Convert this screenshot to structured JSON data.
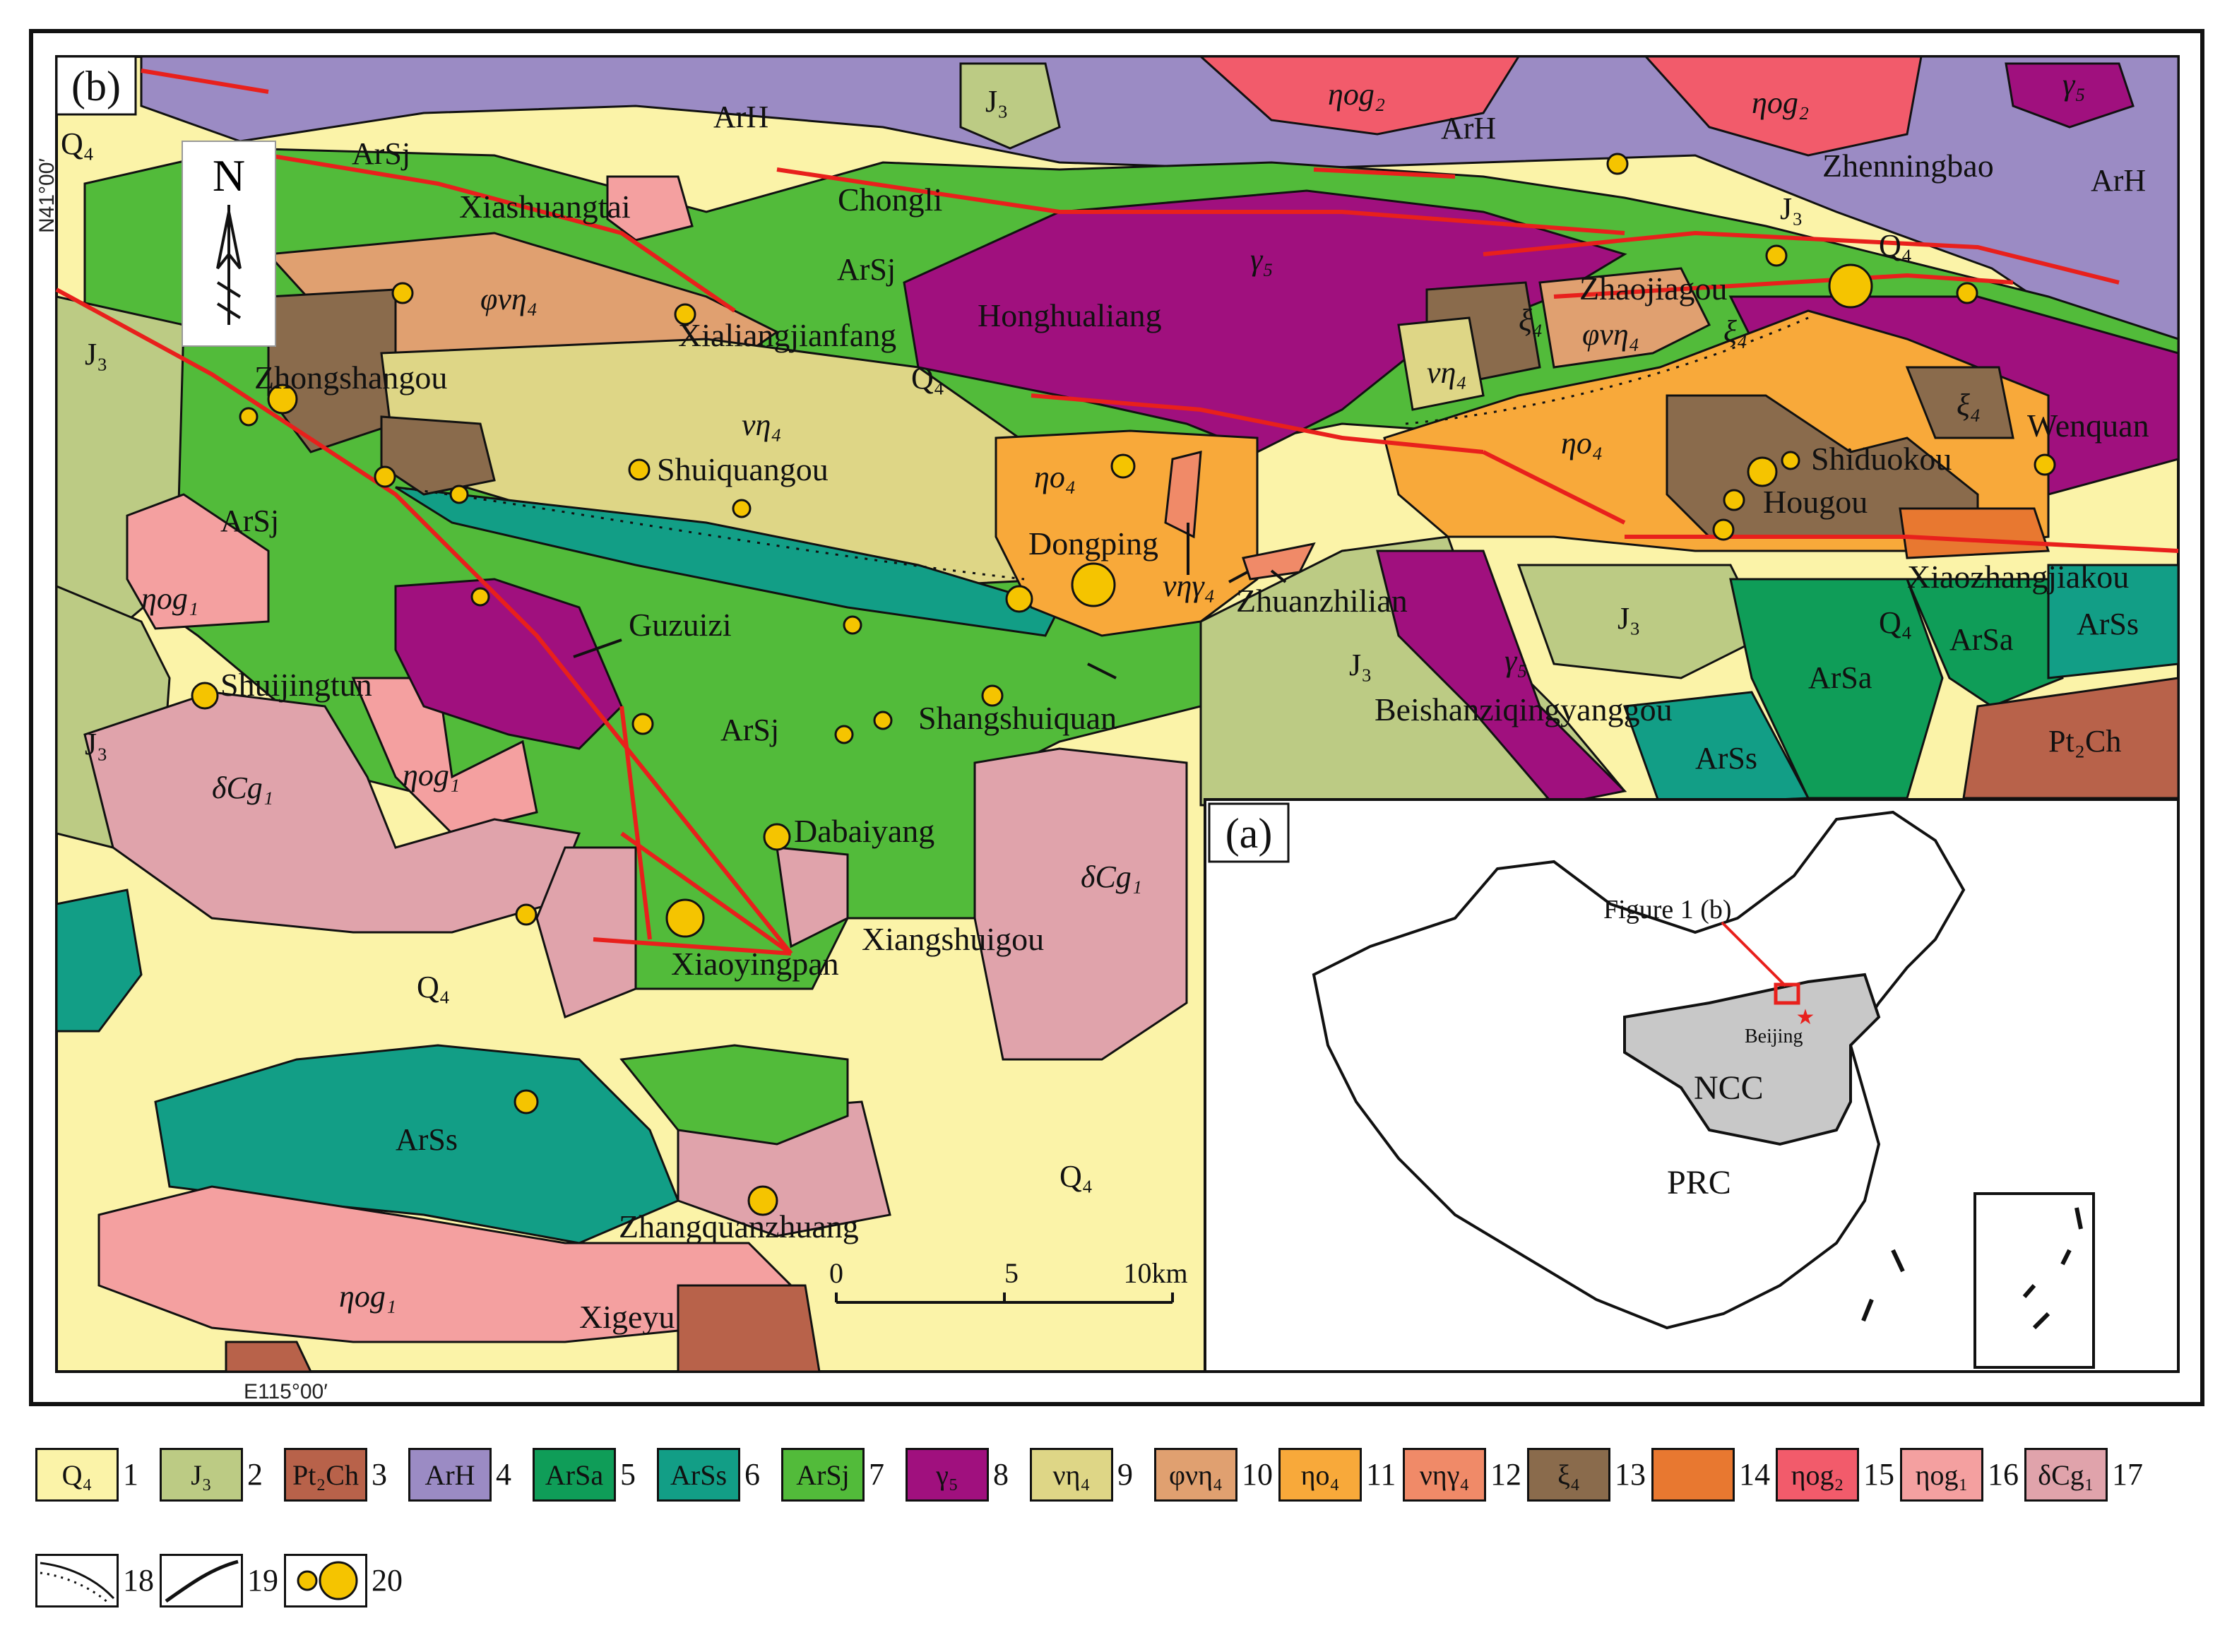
{
  "panels": {
    "main": "(b)",
    "inset": "(a)"
  },
  "coords": {
    "lat": "N41°00′",
    "lon": "E115°00′"
  },
  "north": "N",
  "scale": {
    "ticks": [
      "0",
      "5",
      "10km"
    ]
  },
  "places": {
    "xiashuangtai": "Xiashuangtai",
    "chongli": "Chongli",
    "zhenningbao": "Zhenningbao",
    "xialiangjianfang": "Xialiangjianfang",
    "honghualiang": "Honghualiang",
    "zhaojiagou": "Zhaojiagou",
    "zhongshangou": "Zhongshangou",
    "shuiquangou": "Shuiquangou",
    "wenquan": "Wenquan",
    "shiduokou": "Shiduokou",
    "hougou": "Hougou",
    "dongping": "Dongping",
    "zhuanzhilian": "Zhuanzhilian",
    "xiaozhangjiakou": "Xiaozhangjiakou",
    "guzuizi": "Guzuizi",
    "shuijingtun": "Shuijingtun",
    "shangshuiquan": "Shangshuiquan",
    "beishanziqingyanggou": "Beishanziqingyanggou",
    "dabaiyang": "Dabaiyang",
    "xiangshuigou": "Xiangshuigou",
    "xiaoyingpan": "Xiaoyingpan",
    "zhangquanzhuang": "Zhangquanzhuang",
    "xigeyu": "Xigeyu"
  },
  "units": {
    "Q4": "Q₄",
    "J3": "J₃",
    "Pt2Ch": "Pt₂Ch",
    "ArH": "ArH",
    "ArSa": "ArSa",
    "ArSs": "ArSs",
    "ArSj": "ArSj",
    "g5": "γ₅",
    "vn4": "νη₄",
    "fvn4": "φνη₄",
    "no4": "ηο₄",
    "vng4": "νηγ₄",
    "xi4": "ξ₄",
    "nog2": "ηog₂",
    "nog1": "ηog₁",
    "dCg1": "δCg₁"
  },
  "inset": {
    "figure_label": "Figure 1 (b)",
    "beijing": "Beijing",
    "ncc": "NCC",
    "prc": "PRC"
  },
  "colors": {
    "Q4": "#fbf3a8",
    "J3": "#bccb84",
    "Pt2Ch": "#b8624a",
    "ArH": "#9b8bc4",
    "ArSa": "#0f9d58",
    "ArSs": "#129e86",
    "ArSj": "#52bb3a",
    "g5": "#a0107e",
    "vn4": "#ded686",
    "fvn4": "#e0a070",
    "no4": "#f8a93a",
    "vng4": "#f08a68",
    "xi4": "#8a6b4c",
    "u14": "#e87830",
    "nog2": "#f25b6b",
    "nog1": "#f4a0a0",
    "dCg1": "#e0a3ab",
    "fault": "#e8201c",
    "deposit": "#f5c400"
  },
  "legend": [
    {
      "label": "Q₄",
      "num": "1",
      "color": "#fbf3a8"
    },
    {
      "label": "J₃",
      "num": "2",
      "color": "#bccb84"
    },
    {
      "label": "Pt₂Ch",
      "num": "3",
      "color": "#b8624a"
    },
    {
      "label": "ArH",
      "num": "4",
      "color": "#9b8bc4"
    },
    {
      "label": "ArSa",
      "num": "5",
      "color": "#0f9d58"
    },
    {
      "label": "ArSs",
      "num": "6",
      "color": "#129e86"
    },
    {
      "label": "ArSj",
      "num": "7",
      "color": "#52bb3a"
    },
    {
      "label": "γ₅",
      "num": "8",
      "color": "#a0107e"
    },
    {
      "label": "νη₄",
      "num": "9",
      "color": "#ded686"
    },
    {
      "label": "φνη₄",
      "num": "10",
      "color": "#e0a070"
    },
    {
      "label": "ηο₄",
      "num": "11",
      "color": "#f8a93a"
    },
    {
      "label": "νηγ₄",
      "num": "12",
      "color": "#f08a68"
    },
    {
      "label": "ξ₄",
      "num": "13",
      "color": "#8a6b4c"
    },
    {
      "label": "",
      "num": "14",
      "color": "#e87830"
    },
    {
      "label": "ηog₂",
      "num": "15",
      "color": "#f25b6b"
    },
    {
      "label": "ηog₁",
      "num": "16",
      "color": "#f4a0a0"
    },
    {
      "label": "δCg₁",
      "num": "17",
      "color": "#e0a3ab"
    },
    {
      "label": "",
      "num": "18",
      "color": "#ffffff"
    },
    {
      "label": "",
      "num": "19",
      "color": "#ffffff"
    },
    {
      "label": "",
      "num": "20",
      "color": "#ffffff"
    }
  ]
}
